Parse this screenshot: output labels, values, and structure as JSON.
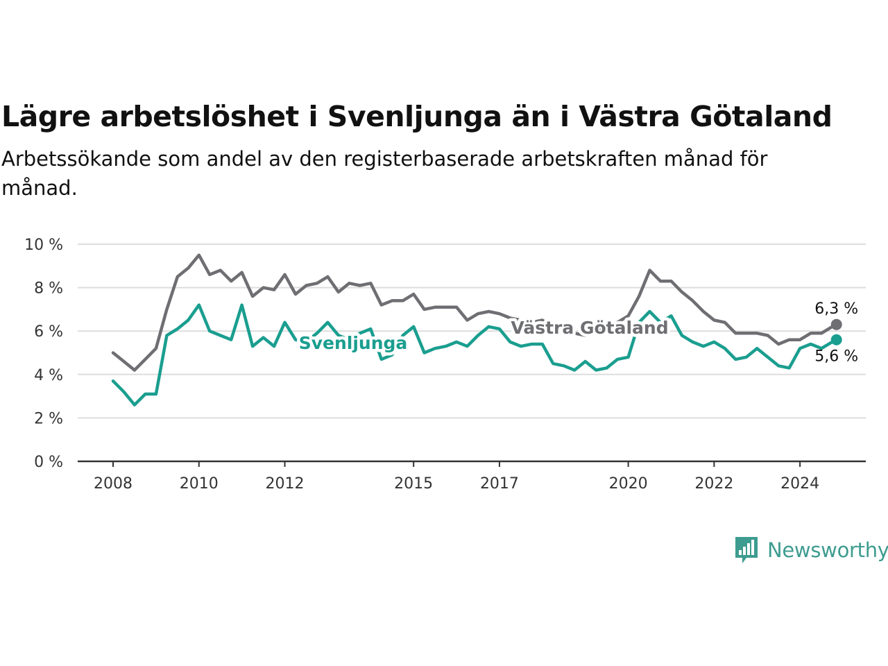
{
  "title": "Lägre arbetslöshet i Svenljunga än i Västra Götaland",
  "subtitle": "Arbetssökande som andel av den registerbaserade arbetskraften månad för månad.",
  "brand": {
    "name": "Newsworthy",
    "color": "#3d9c8f",
    "icon": "newsworthy-logo-icon"
  },
  "colors": {
    "grid": "#dddddd",
    "axis": "#333333"
  },
  "chart_data": {
    "type": "line",
    "title": "Lägre arbetslöshet i Svenljunga än i Västra Götaland",
    "subtitle": "Arbetssökande som andel av den registerbaserade arbetskraften månad för månad.",
    "ylim": [
      0,
      10
    ],
    "yticks": [
      0,
      2,
      4,
      6,
      8,
      10
    ],
    "ytick_labels": [
      "0 %",
      "2 %",
      "4 %",
      "6 %",
      "8 %",
      "10 %"
    ],
    "xlim": [
      2008.0,
      2025.0
    ],
    "xticks": [
      2008,
      2010,
      2012,
      2015,
      2017,
      2020,
      2022,
      2024
    ],
    "xtick_labels": [
      "2008",
      "2010",
      "2012",
      "2015",
      "2017",
      "2020",
      "2022",
      "2024"
    ],
    "grid": true,
    "series": [
      {
        "name": "Västra Götaland",
        "color": "#6e6e73",
        "end_label": "6,3 %",
        "x": [
          2008.0,
          2008.25,
          2008.5,
          2008.75,
          2009.0,
          2009.25,
          2009.5,
          2009.75,
          2010.0,
          2010.25,
          2010.5,
          2010.75,
          2011.0,
          2011.25,
          2011.5,
          2011.75,
          2012.0,
          2012.25,
          2012.5,
          2012.75,
          2013.0,
          2013.25,
          2013.5,
          2013.75,
          2014.0,
          2014.25,
          2014.5,
          2014.75,
          2015.0,
          2015.25,
          2015.5,
          2015.75,
          2016.0,
          2016.25,
          2016.5,
          2016.75,
          2017.0,
          2017.25,
          2017.5,
          2017.75,
          2018.0,
          2018.25,
          2018.5,
          2018.75,
          2019.0,
          2019.25,
          2019.5,
          2019.75,
          2020.0,
          2020.25,
          2020.5,
          2020.75,
          2021.0,
          2021.25,
          2021.5,
          2021.75,
          2022.0,
          2022.25,
          2022.5,
          2022.75,
          2023.0,
          2023.25,
          2023.5,
          2023.75,
          2024.0,
          2024.25,
          2024.5,
          2024.75,
          2024.85
        ],
        "values": [
          5.0,
          4.6,
          4.2,
          4.7,
          5.2,
          7.0,
          8.5,
          8.9,
          9.5,
          8.6,
          8.8,
          8.3,
          8.7,
          7.6,
          8.0,
          7.9,
          8.6,
          7.7,
          8.1,
          8.2,
          8.5,
          7.8,
          8.2,
          8.1,
          8.2,
          7.2,
          7.4,
          7.4,
          7.7,
          7.0,
          7.1,
          7.1,
          7.1,
          6.5,
          6.8,
          6.9,
          6.8,
          6.6,
          6.5,
          6.4,
          6.5,
          6.2,
          6.0,
          5.9,
          5.8,
          6.0,
          6.2,
          6.4,
          6.7,
          7.6,
          8.8,
          8.3,
          8.3,
          7.8,
          7.4,
          6.9,
          6.5,
          6.4,
          5.9,
          5.9,
          5.9,
          5.8,
          5.4,
          5.6,
          5.6,
          5.9,
          5.9,
          6.2,
          6.3
        ]
      },
      {
        "name": "Svenljunga",
        "color": "#1a9e8f",
        "end_label": "5,6 %",
        "x": [
          2008.0,
          2008.25,
          2008.5,
          2008.75,
          2009.0,
          2009.25,
          2009.5,
          2009.75,
          2010.0,
          2010.25,
          2010.5,
          2010.75,
          2011.0,
          2011.25,
          2011.5,
          2011.75,
          2012.0,
          2012.25,
          2012.5,
          2012.75,
          2013.0,
          2013.25,
          2013.5,
          2013.75,
          2014.0,
          2014.25,
          2014.5,
          2014.75,
          2015.0,
          2015.25,
          2015.5,
          2015.75,
          2016.0,
          2016.25,
          2016.5,
          2016.75,
          2017.0,
          2017.25,
          2017.5,
          2017.75,
          2018.0,
          2018.25,
          2018.5,
          2018.75,
          2019.0,
          2019.25,
          2019.5,
          2019.75,
          2020.0,
          2020.25,
          2020.5,
          2020.75,
          2021.0,
          2021.25,
          2021.5,
          2021.75,
          2022.0,
          2022.25,
          2022.5,
          2022.75,
          2023.0,
          2023.25,
          2023.5,
          2023.75,
          2024.0,
          2024.25,
          2024.5,
          2024.75,
          2024.85
        ],
        "values": [
          3.7,
          3.2,
          2.6,
          3.1,
          3.1,
          5.8,
          6.1,
          6.5,
          7.2,
          6.0,
          5.8,
          5.6,
          7.2,
          5.3,
          5.7,
          5.3,
          6.4,
          5.6,
          5.5,
          5.9,
          6.4,
          5.8,
          5.6,
          5.9,
          6.1,
          4.7,
          4.9,
          5.8,
          6.2,
          5.0,
          5.2,
          5.3,
          5.5,
          5.3,
          5.8,
          6.2,
          6.1,
          5.5,
          5.3,
          5.4,
          5.4,
          4.5,
          4.4,
          4.2,
          4.6,
          4.2,
          4.3,
          4.7,
          4.8,
          6.4,
          6.9,
          6.4,
          6.7,
          5.8,
          5.5,
          5.3,
          5.5,
          5.2,
          4.7,
          4.8,
          5.2,
          4.8,
          4.4,
          4.3,
          5.2,
          5.4,
          5.2,
          5.5,
          5.6
        ]
      }
    ]
  }
}
